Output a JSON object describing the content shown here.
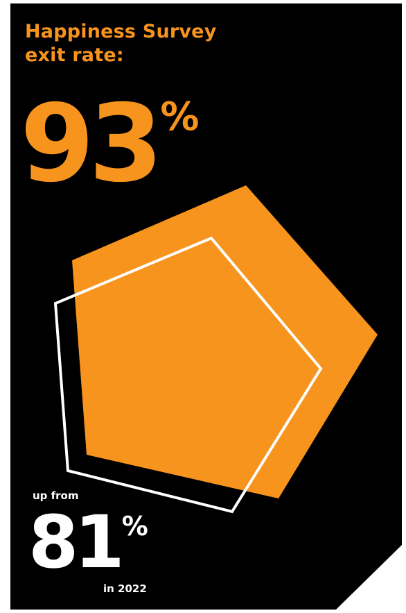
{
  "headline": {
    "line1": "Happiness Survey",
    "line2": "exit rate:"
  },
  "current": {
    "value": "93",
    "unit": "%"
  },
  "previous": {
    "prefix": "up from",
    "value": "81",
    "unit": "%",
    "suffix": "in 2022"
  },
  "colors": {
    "background": "#000000",
    "accent": "#F7941E",
    "text_secondary": "#FFFFFF"
  }
}
